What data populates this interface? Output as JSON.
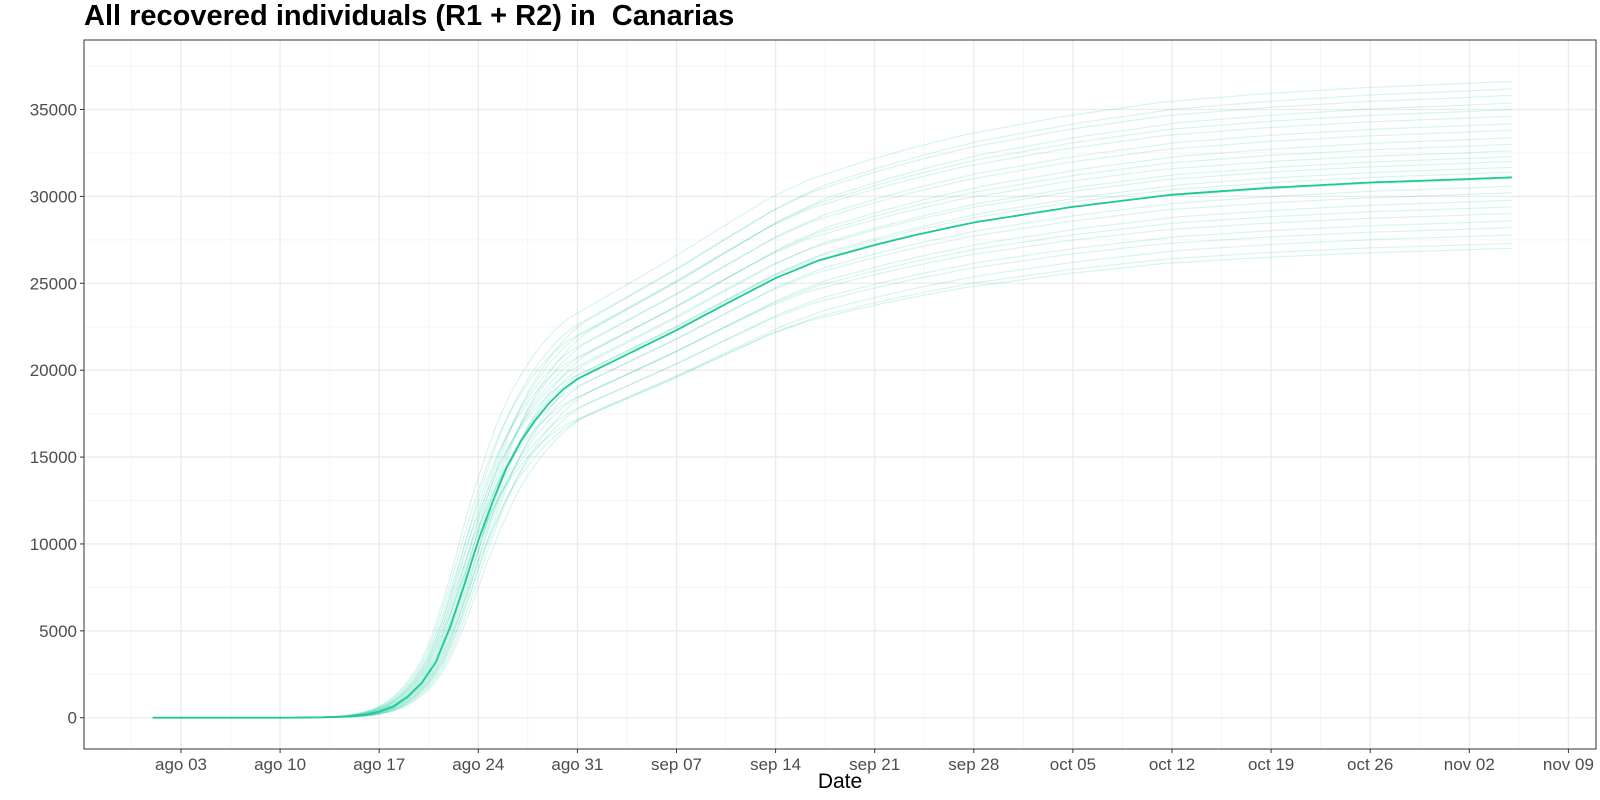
{
  "chart_data": {
    "type": "line",
    "title": "All recovered individuals (R1 + R2) in  Canarias",
    "xlabel": "Date",
    "ylabel": "",
    "x_ticks": [
      "ago 03",
      "ago 10",
      "ago 17",
      "ago 24",
      "ago 31",
      "sep 07",
      "sep 14",
      "sep 21",
      "sep 28",
      "oct 05",
      "oct 12",
      "oct 19",
      "oct 26",
      "nov 02",
      "nov 09"
    ],
    "y_ticks": [
      0,
      5000,
      10000,
      15000,
      20000,
      25000,
      30000,
      35000
    ],
    "ylim": [
      -1800,
      39000
    ],
    "grid": true,
    "legend": "none",
    "colors": {
      "main": "#1DC99A",
      "ensemble": "#1DC99A",
      "grid_major": "#EBEBEB",
      "grid_minor": "#F5F5F5",
      "panel_border": "#333333"
    },
    "main_series": {
      "name": "",
      "x": [
        "ago 01",
        "ago 10",
        "ago 13",
        "ago 15",
        "ago 16",
        "ago 17",
        "ago 18",
        "ago 19",
        "ago 20",
        "ago 21",
        "ago 22",
        "ago 23",
        "ago 24",
        "ago 25",
        "ago 26",
        "ago 27",
        "ago 28",
        "ago 29",
        "ago 30",
        "ago 31",
        "sep 03",
        "sep 07",
        "sep 10",
        "sep 14",
        "sep 17",
        "sep 21",
        "sep 24",
        "sep 28",
        "oct 05",
        "oct 12",
        "oct 19",
        "oct 26",
        "nov 02",
        "nov 05"
      ],
      "values": [
        0,
        0,
        20,
        80,
        170,
        350,
        650,
        1200,
        2000,
        3200,
        5200,
        7600,
        10200,
        12400,
        14400,
        15900,
        17100,
        18100,
        18900,
        19500,
        20700,
        22300,
        23600,
        25300,
        26300,
        27200,
        27800,
        28500,
        29400,
        30100,
        30500,
        30800,
        31000,
        31100
      ]
    },
    "ensemble_plateaus": [
      27000,
      27300,
      27800,
      28200,
      28600,
      29000,
      29400,
      29800,
      30200,
      30600,
      31000,
      31400,
      31700,
      32000,
      32300,
      32600,
      33000,
      33400,
      33800,
      34200,
      34600,
      35000,
      35400,
      35800,
      36200,
      36600
    ],
    "ensemble_end": "nov 05"
  }
}
